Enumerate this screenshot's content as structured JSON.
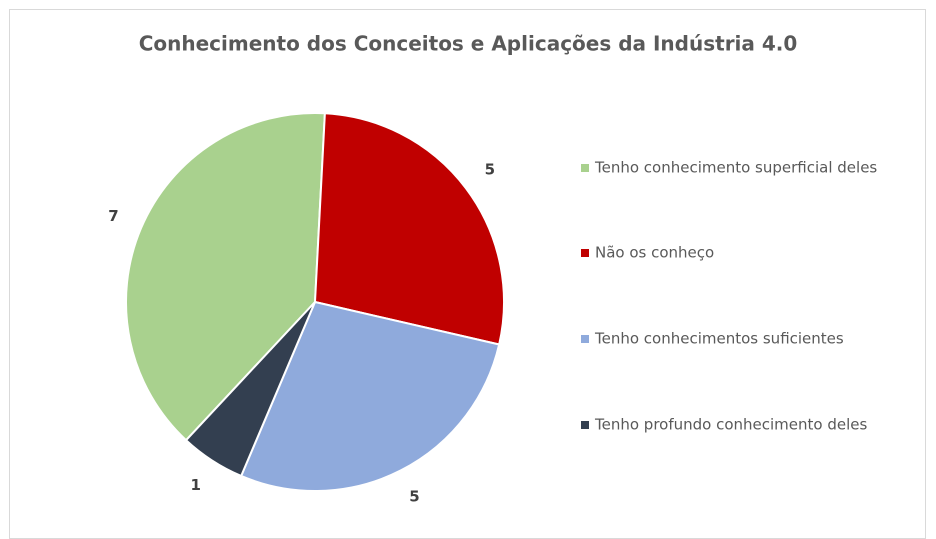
{
  "chart_data": {
    "type": "pie",
    "title": "Conhecimento dos Conceitos e Aplicações da Indústria 4.0",
    "categories": [
      "Tenho conhecimento superficial deles",
      "Não os conheço",
      "Tenho conhecimentos suficientes",
      "Tenho profundo conhecimento deles"
    ],
    "values": [
      7,
      5,
      5,
      1
    ],
    "colors": [
      "#a9d18e",
      "#c00000",
      "#8faadc",
      "#333f50"
    ],
    "legend": "right"
  }
}
